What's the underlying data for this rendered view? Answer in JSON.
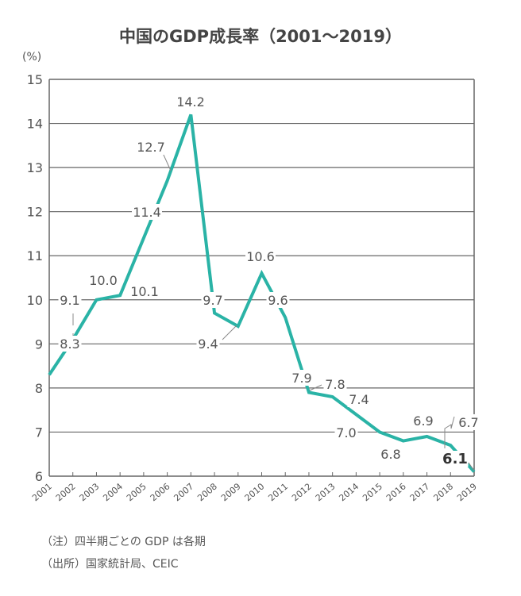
{
  "chart_data": {
    "type": "line",
    "title": "中国のGDP成長率（2001〜2019）",
    "ylabel": "(%)",
    "xlabel": "",
    "ylim": [
      6,
      15
    ],
    "yticks": [
      "6",
      "7",
      "8",
      "9",
      "10",
      "11",
      "12",
      "13",
      "14",
      "15"
    ],
    "grid": true,
    "x": [
      "2001",
      "2002",
      "2003",
      "2004",
      "2005",
      "2006",
      "2007",
      "2008",
      "2009",
      "2010",
      "2011",
      "2012",
      "2013",
      "2014",
      "2015",
      "2016",
      "2017",
      "2018",
      "2019"
    ],
    "values": [
      8.3,
      9.1,
      10.0,
      10.1,
      11.4,
      12.7,
      14.2,
      9.7,
      9.4,
      10.6,
      9.6,
      7.9,
      7.8,
      7.4,
      7.0,
      6.8,
      6.9,
      6.7,
      6.1
    ],
    "data_labels": [
      "8.3",
      "9.1",
      "10.0",
      "10.1",
      "11.4",
      "12.7",
      "14.2",
      "9.7",
      "9.4",
      "10.6",
      "9.6",
      "7.9",
      "7.8",
      "7.4",
      "7.0",
      "6.8",
      "6.9",
      "6.7",
      "6.1"
    ],
    "line_color": "#2ab3a6"
  },
  "notes": [
    "（注）四半期ごとの GDP は各期",
    "（出所）国家統計局、CEIC"
  ]
}
